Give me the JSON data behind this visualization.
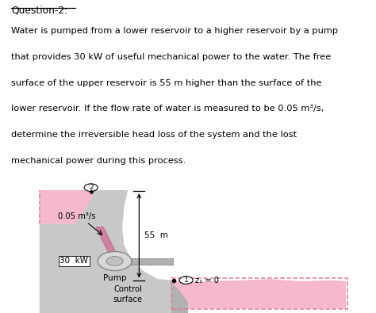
{
  "title": "Question-2:",
  "lines": [
    "Water is pumped from a lower reservoir to a higher reservoir by a pump",
    "that provides 30 kW of useful mechanical power to the water. The free",
    "surface of the upper reservoir is 55 m higher than the surface of the",
    "lower reservoir. If the flow rate of water is measured to be 0.05 m³/s,",
    "determine the irreversible head loss of the system and the lost",
    "mechanical power during this process."
  ],
  "background": "#ffffff",
  "pink": "#f5b8cc",
  "pink_dashed": "#e08090",
  "gray_light": "#c8c8c8",
  "gray_med": "#b0b0b0",
  "gray_dark": "#989898",
  "pipe_color": "#a0a0a0",
  "fig_width": 4.74,
  "fig_height": 3.95,
  "dpi": 100
}
